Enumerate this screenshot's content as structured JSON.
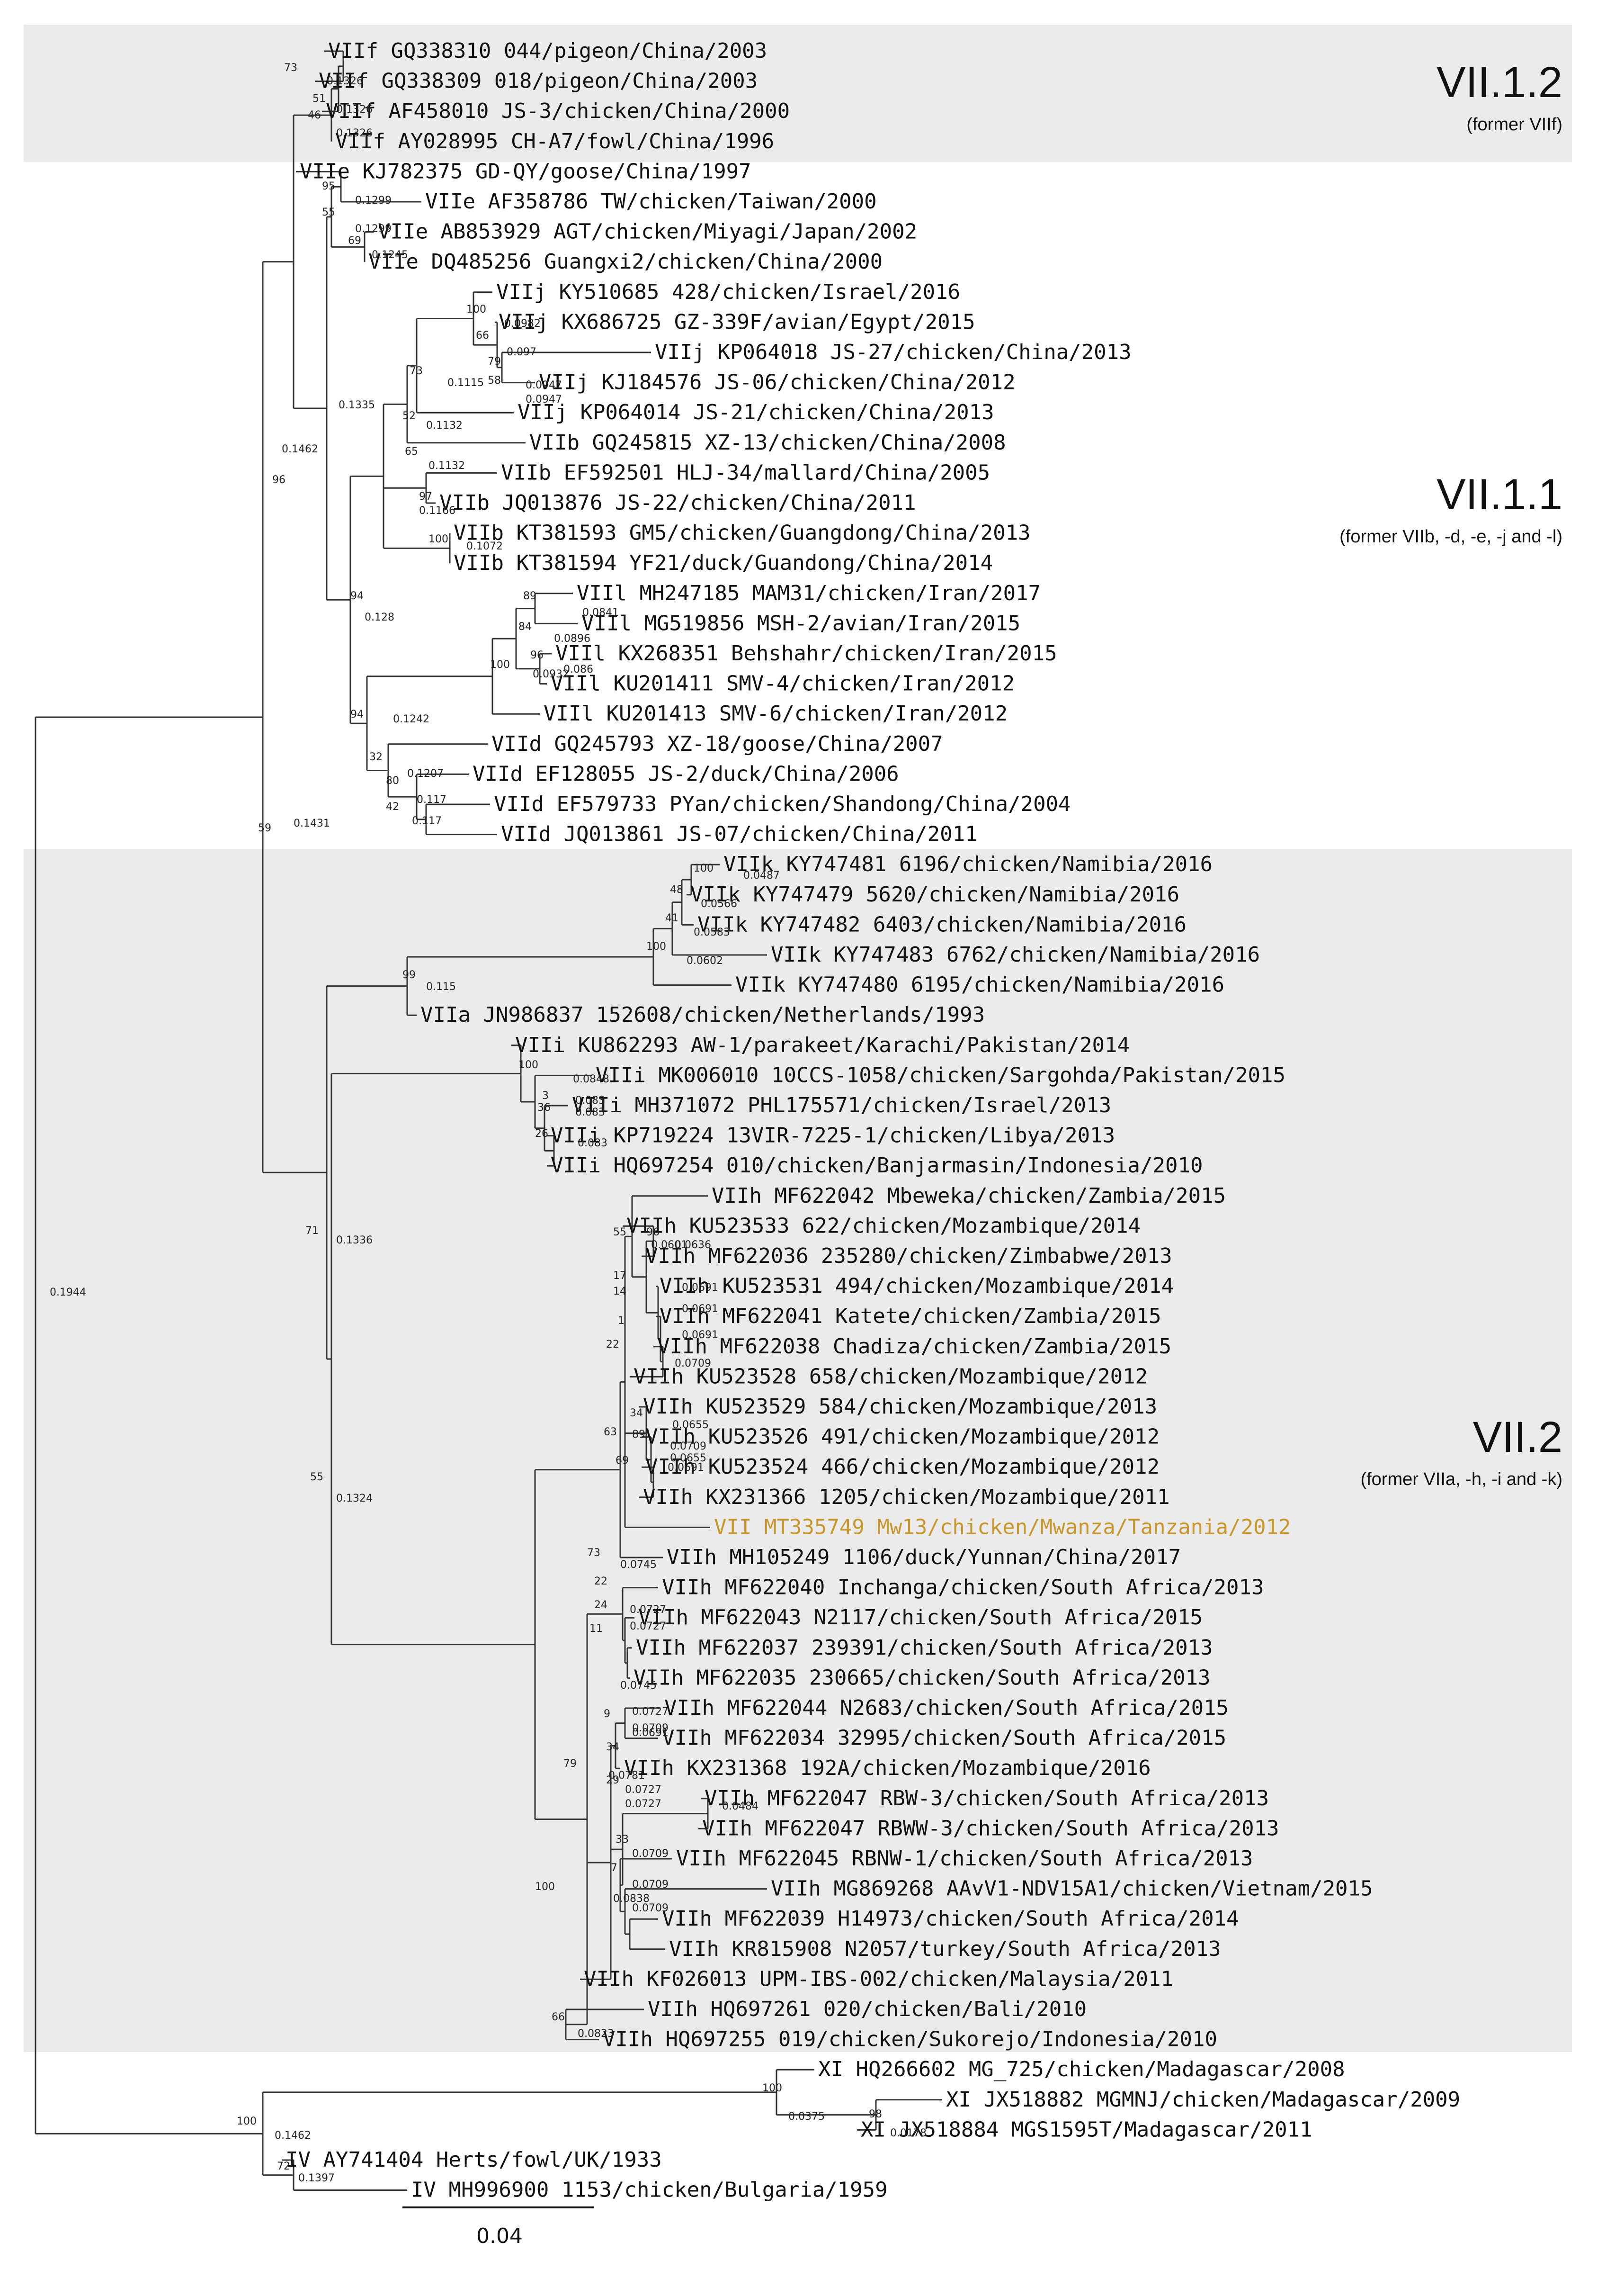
{
  "figure": {
    "type": "phylogenetic_tree",
    "scale_bar_label": "0.04"
  },
  "clades": [
    {
      "name": "VII.1.2",
      "subtitle": "(former VIIf)"
    },
    {
      "name": "VII.1.1",
      "subtitle": "(former VIIb, -d, -e, -j and -l)"
    },
    {
      "name": "VII.2",
      "subtitle": "(former VIIa, -h, -i and -k)"
    }
  ],
  "leaves": [
    {
      "label": "VIIf GQ338310 044/pigeon/China/2003"
    },
    {
      "label": "VIIf GQ338309 018/pigeon/China/2003"
    },
    {
      "label": "VIIf AF458010 JS-3/chicken/China/2000"
    },
    {
      "label": "VIIf AY028995 CH-A7/fowl/China/1996"
    },
    {
      "label": "VIIe KJ782375 GD-QY/goose/China/1997"
    },
    {
      "label": "VIIe AF358786 TW/chicken/Taiwan/2000"
    },
    {
      "label": "VIIe AB853929 AGT/chicken/Miyagi/Japan/2002"
    },
    {
      "label": "VIIe DQ485256 Guangxi2/chicken/China/2000"
    },
    {
      "label": "VIIj KY510685 428/chicken/Israel/2016"
    },
    {
      "label": "VIIj KX686725 GZ-339F/avian/Egypt/2015"
    },
    {
      "label": "VIIj KP064018 JS-27/chicken/China/2013"
    },
    {
      "label": "VIIj KJ184576 JS-06/chicken/China/2012"
    },
    {
      "label": "VIIj KP064014 JS-21/chicken/China/2013"
    },
    {
      "label": "VIIb GQ245815 XZ-13/chicken/China/2008"
    },
    {
      "label": "VIIb EF592501 HLJ-34/mallard/China/2005"
    },
    {
      "label": "VIIb JQ013876 JS-22/chicken/China/2011"
    },
    {
      "label": "VIIb KT381593 GM5/chicken/Guangdong/China/2013"
    },
    {
      "label": "VIIb KT381594 YF21/duck/Guandong/China/2014"
    },
    {
      "label": "VIIl MH247185 MAM31/chicken/Iran/2017"
    },
    {
      "label": "VIIl MG519856 MSH-2/avian/Iran/2015"
    },
    {
      "label": "VIIl KX268351 Behshahr/chicken/Iran/2015"
    },
    {
      "label": "VIIl KU201411 SMV-4/chicken/Iran/2012"
    },
    {
      "label": "VIIl KU201413 SMV-6/chicken/Iran/2012"
    },
    {
      "label": "VIId GQ245793 XZ-18/goose/China/2007"
    },
    {
      "label": "VIId EF128055 JS-2/duck/China/2006"
    },
    {
      "label": "VIId EF579733 PYan/chicken/Shandong/China/2004"
    },
    {
      "label": "VIId JQ013861 JS-07/chicken/China/2011"
    },
    {
      "label": "VIIk KY747481 6196/chicken/Namibia/2016"
    },
    {
      "label": "VIIk KY747479 5620/chicken/Namibia/2016"
    },
    {
      "label": "VIIk KY747482 6403/chicken/Namibia/2016"
    },
    {
      "label": "VIIk KY747483 6762/chicken/Namibia/2016"
    },
    {
      "label": "VIIk KY747480 6195/chicken/Namibia/2016"
    },
    {
      "label": "VIIa JN986837 152608/chicken/Netherlands/1993"
    },
    {
      "label": "VIIi KU862293 AW-1/parakeet/Karachi/Pakistan/2014"
    },
    {
      "label": "VIIi MK006010 10CCS-1058/chicken/Sargohda/Pakistan/2015"
    },
    {
      "label": "VIIi MH371072 PHL175571/chicken/Israel/2013"
    },
    {
      "label": "VIIi KP719224 13VIR-7225-1/chicken/Libya/2013"
    },
    {
      "label": "VIIi HQ697254 010/chicken/Banjarmasin/Indonesia/2010"
    },
    {
      "label": "VIIh MF622042 Mbeweka/chicken/Zambia/2015"
    },
    {
      "label": "VIIh KU523533 622/chicken/Mozambique/2014"
    },
    {
      "label": "VIIh MF622036 235280/chicken/Zimbabwe/2013"
    },
    {
      "label": "VIIh KU523531 494/chicken/Mozambique/2014"
    },
    {
      "label": "VIIh MF622041 Katete/chicken/Zambia/2015"
    },
    {
      "label": "VIIh MF622038 Chadiza/chicken/Zambia/2015"
    },
    {
      "label": "VIIh KU523528 658/chicken/Mozambique/2012"
    },
    {
      "label": "VIIh KU523529 584/chicken/Mozambique/2013"
    },
    {
      "label": "VIIh KU523526 491/chicken/Mozambique/2012"
    },
    {
      "label": "VIIh KU523524 466/chicken/Mozambique/2012"
    },
    {
      "label": "VIIh KX231366 1205/chicken/Mozambique/2011"
    },
    {
      "label": "VII MT335749 Mw13/chicken/Mwanza/Tanzania/2012",
      "highlight": true
    },
    {
      "label": "VIIh MH105249 1106/duck/Yunnan/China/2017"
    },
    {
      "label": "VIIh MF622040 Inchanga/chicken/South Africa/2013"
    },
    {
      "label": "VIIh MF622043 N2117/chicken/South Africa/2015"
    },
    {
      "label": "VIIh MF622037 239391/chicken/South Africa/2013"
    },
    {
      "label": "VIIh MF622035 230665/chicken/South Africa/2013"
    },
    {
      "label": "VIIh MF622044 N2683/chicken/South Africa/2015"
    },
    {
      "label": "VIIh MF622034 32995/chicken/South Africa/2015"
    },
    {
      "label": "VIIh KX231368 192A/chicken/Mozambique/2016"
    },
    {
      "label": "VIIh MF622047 RBW-3/chicken/South Africa/2013"
    },
    {
      "label": "VIIh MF622047 RBWW-3/chicken/South Africa/2013"
    },
    {
      "label": "VIIh MF622045 RBNW-1/chicken/South Africa/2013"
    },
    {
      "label": "VIIh MG869268 AAvV1-NDV15A1/chicken/Vietnam/2015"
    },
    {
      "label": "VIIh MF622039 H14973/chicken/South Africa/2014"
    },
    {
      "label": "VIIh KR815908 N2057/turkey/South Africa/2013"
    },
    {
      "label": "VIIh KF026013 UPM-IBS-002/chicken/Malaysia/2011"
    },
    {
      "label": "VIIh HQ697261 020/chicken/Bali/2010"
    },
    {
      "label": "VIIh HQ697255 019/chicken/Sukorejo/Indonesia/2010"
    },
    {
      "label": "XI HQ266602 MG_725/chicken/Madagascar/2008"
    },
    {
      "label": "XI JX518882 MGMNJ/chicken/Madagascar/2009"
    },
    {
      "label": "XI JX518884 MGS1595T/Madagascar/2011"
    },
    {
      "label": "IV AY741404 Herts/fowl/UK/1933"
    },
    {
      "label": "IV MH996900 1153/chicken/Bulgaria/1959"
    }
  ],
  "bootstrap": [
    "73",
    "51",
    "46",
    "95",
    "55",
    "69",
    "100",
    "66",
    "79",
    "58",
    "73",
    "52",
    "65",
    "97",
    "100",
    "89",
    "84",
    "96",
    "100",
    "94",
    "32",
    "80",
    "42",
    "96",
    "94",
    "100",
    "48",
    "41",
    "100",
    "99",
    "100",
    "3",
    "36",
    "26",
    "96",
    "55",
    "17",
    "14",
    "1",
    "22",
    "34",
    "89",
    "69",
    "63",
    "73",
    "22",
    "24",
    "11",
    "9",
    "34",
    "29",
    "33",
    "7",
    "79",
    "100",
    "66",
    "71",
    "55",
    "59",
    "100",
    "98",
    "100",
    "72"
  ],
  "branch_lengths": [
    "0.1326",
    "0.1326",
    "0.1326",
    "0.1299",
    "0.1299",
    "0.1245",
    "0.0982",
    "0.097",
    "0.0947",
    "0.0947",
    "0.1115",
    "0.1132",
    "0.1132",
    "0.1166",
    "0.1072",
    "0.1335",
    "0.1462",
    "0.0841",
    "0.0896",
    "0.086",
    "0.0932",
    "0.128",
    "0.1242",
    "0.1207",
    "0.117",
    "0.117",
    "0.1431",
    "0.0487",
    "0.0566",
    "0.0583",
    "0.0602",
    "0.115",
    "0.0848",
    "0.083",
    "0.083",
    "0.083",
    "0.0601",
    "0.0636",
    "0.0691",
    "0.0691",
    "0.0691",
    "0.0709",
    "0.0655",
    "0.0709",
    "0.0655",
    "0.0691",
    "0.0745",
    "0.0727",
    "0.0727",
    "0.0745",
    "0.0727",
    "0.0709",
    "0.0691",
    "0.0781",
    "0.0727",
    "0.0727",
    "0.0484",
    "0.0709",
    "0.0709",
    "0.0709",
    "0.0838",
    "0.0823",
    "0.1336",
    "0.1324",
    "0.1944",
    "0.0375",
    "0.0178",
    "0.1462",
    "0.1397"
  ]
}
